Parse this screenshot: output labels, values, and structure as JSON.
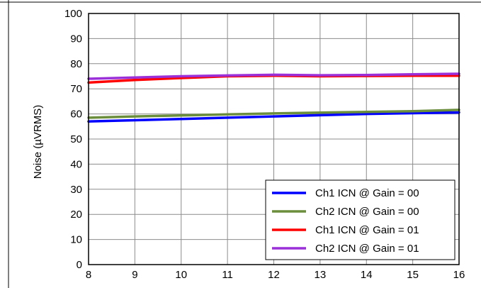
{
  "chart_data": {
    "type": "line",
    "title": "",
    "xlabel": "",
    "ylabel": "Noise (µVRMS)",
    "xlim": [
      8,
      16
    ],
    "ylim": [
      0,
      100
    ],
    "xticks": [
      8,
      9,
      10,
      11,
      12,
      13,
      14,
      15,
      16
    ],
    "yticks": [
      0,
      10,
      20,
      30,
      40,
      50,
      60,
      70,
      80,
      90,
      100
    ],
    "grid": true,
    "legend_position": "bottom-right",
    "series": [
      {
        "name": "Ch1 ICN @ Gain = 00",
        "color": "#0000ff",
        "x": [
          8,
          9,
          10,
          11,
          12,
          13,
          14,
          15,
          16
        ],
        "y": [
          57.0,
          57.5,
          58.0,
          58.5,
          59.0,
          59.5,
          60.0,
          60.3,
          60.6
        ]
      },
      {
        "name": "Ch2 ICN @ Gain = 00",
        "color": "#6b8e3d",
        "x": [
          8,
          9,
          10,
          11,
          12,
          13,
          14,
          15,
          16
        ],
        "y": [
          58.5,
          59.0,
          59.4,
          59.8,
          60.2,
          60.5,
          60.8,
          61.1,
          61.6
        ]
      },
      {
        "name": "Ch1 ICN @ Gain = 01",
        "color": "#ff0000",
        "x": [
          8,
          9,
          10,
          11,
          12,
          13,
          14,
          15,
          16
        ],
        "y": [
          72.5,
          73.5,
          74.3,
          75.0,
          75.2,
          75.0,
          75.1,
          75.2,
          75.2
        ]
      },
      {
        "name": "Ch2 ICN @ Gain = 01",
        "color": "#9b30d9",
        "x": [
          8,
          9,
          10,
          11,
          12,
          13,
          14,
          15,
          16
        ],
        "y": [
          74.0,
          74.5,
          75.0,
          75.3,
          75.6,
          75.4,
          75.5,
          75.8,
          76.0
        ]
      }
    ]
  }
}
